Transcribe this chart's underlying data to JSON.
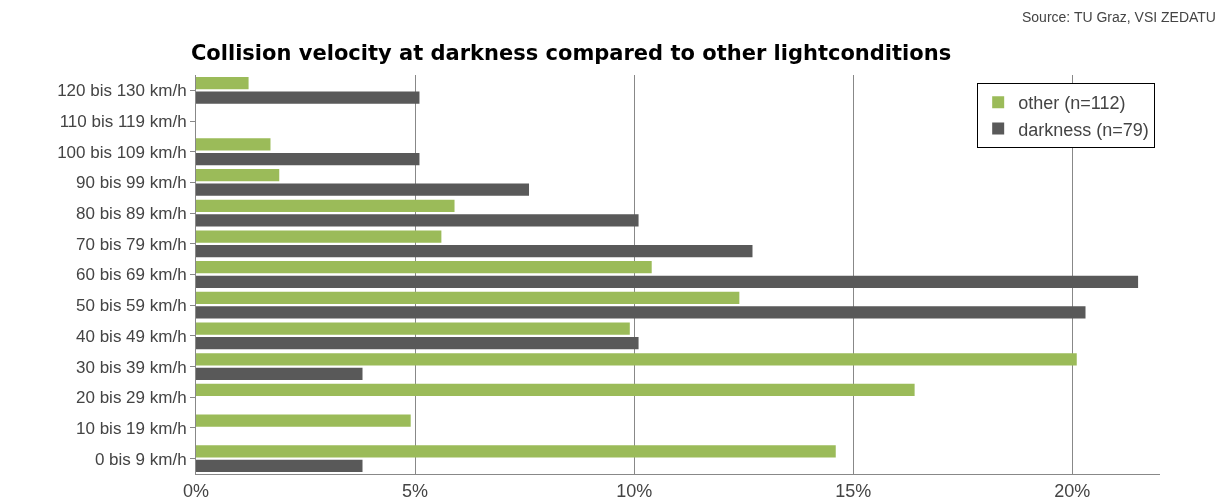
{
  "chart_data": {
    "type": "bar",
    "orientation": "horizontal",
    "title": "Collision velocity at darkness compared to other lightconditions",
    "annotations": [
      "Source: TU Graz, VSI ZEDATU"
    ],
    "categories": [
      "120 bis 130 km/h",
      "110 bis 119 km/h",
      "100 bis 109 km/h",
      "90 bis 99 km/h",
      "80 bis 89 km/h",
      "70 bis 79 km/h",
      "60 bis 69 km/h",
      "50 bis 59 km/h",
      "40 bis 49 km/h",
      "30 bis 39 km/h",
      "20 bis 29 km/h",
      "10 bis 19 km/h",
      "0 bis 9 km/h"
    ],
    "series": [
      {
        "name": "other (n=112)",
        "color": "#9bbb59",
        "values": [
          1.2,
          0,
          1.7,
          1.9,
          5.9,
          5.6,
          10.4,
          12.4,
          9.9,
          20.1,
          16.4,
          4.9,
          14.6
        ]
      },
      {
        "name": "darkness (n=79)",
        "color": "#595959",
        "values": [
          5.1,
          0,
          5.1,
          7.6,
          10.1,
          12.7,
          21.5,
          20.3,
          10.1,
          3.8,
          0,
          0,
          3.8
        ]
      }
    ],
    "xlim": [
      0,
      22
    ],
    "xticks": [
      {
        "value": 0,
        "label": "0%"
      },
      {
        "value": 5,
        "label": "5%"
      },
      {
        "value": 10,
        "label": "10%"
      },
      {
        "value": 15,
        "label": "15%"
      },
      {
        "value": 20,
        "label": "20%"
      }
    ],
    "grid": "x",
    "legend": "top right"
  }
}
